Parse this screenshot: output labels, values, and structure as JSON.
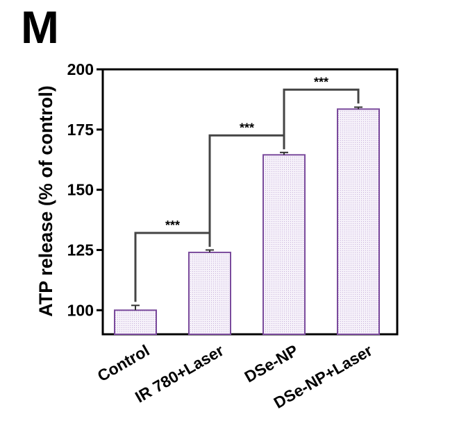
{
  "panel_label": "M",
  "chart_data": {
    "type": "bar",
    "title": "",
    "xlabel": "",
    "ylabel": "ATP release (% of control)",
    "categories": [
      "Control",
      "IR 780+Laser",
      "DSe-NP",
      "DSe-NP+Laser"
    ],
    "values": [
      100,
      124,
      164.5,
      183.5
    ],
    "errors": [
      2,
      1,
      1,
      0.8
    ],
    "ylim": [
      90,
      200
    ],
    "yticks": [
      100,
      125,
      150,
      175,
      200
    ],
    "bar_fill": "#f3eef8",
    "bar_stroke": "#7a4a9c",
    "significance": [
      {
        "from": 0,
        "to": 1,
        "label": "***"
      },
      {
        "from": 1,
        "to": 2,
        "label": "***"
      },
      {
        "from": 2,
        "to": 3,
        "label": "***"
      }
    ]
  }
}
